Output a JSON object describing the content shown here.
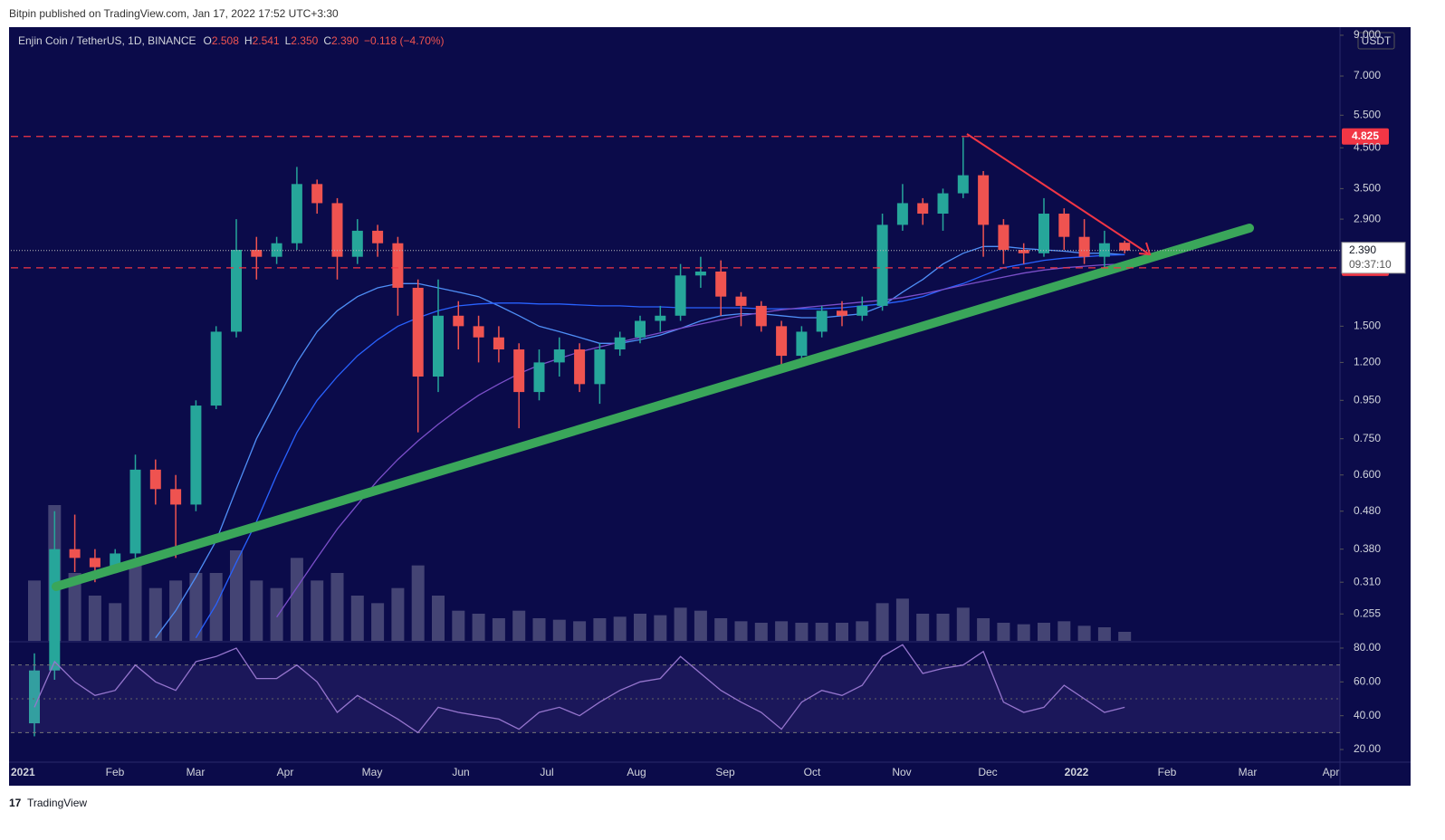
{
  "header": {
    "published": "Bitpin published on TradingView.com, Jan 17, 2022 17:52 UTC+3:30",
    "logo": "TradingView"
  },
  "chart_data": {
    "type": "candlestick",
    "symbol": "Enjin Coin / TetherUS, 1D, BINANCE",
    "ohlc_legend": [
      {
        "key": "O",
        "value": "2.508"
      },
      {
        "key": "H",
        "value": "2.541"
      },
      {
        "key": "L",
        "value": "2.350"
      },
      {
        "key": "C",
        "value": "2.390"
      }
    ],
    "change": "−0.118 (−4.70%)",
    "currency": "USDT",
    "log_scale": true,
    "up_color": "#26a69a",
    "down_color": "#ef5350",
    "ylim": [
      0.216,
      9.46
    ],
    "yticks": [
      0.255,
      {
        "value": 0.31,
        "label": "0.310"
      },
      {
        "value": 0.38,
        "label": "0.380"
      },
      {
        "value": 0.48,
        "label": "0.480"
      },
      {
        "value": 0.6,
        "label": "0.600"
      },
      {
        "value": 0.75,
        "label": "0.750"
      },
      {
        "value": 0.95,
        "label": "0.950"
      },
      {
        "value": 1.2,
        "label": "1.200"
      },
      {
        "value": 1.5,
        "label": "1.500"
      },
      {
        "value": 2.9,
        "label": "2.900"
      },
      {
        "value": 3.5,
        "label": "3.500"
      },
      {
        "value": 4.5,
        "label": "4.500"
      },
      {
        "value": 5.5,
        "label": "5.500"
      },
      {
        "value": 7,
        "label": "7.000"
      },
      {
        "value": 9,
        "label": "9.000"
      }
    ],
    "x_labels": [
      "2021",
      "Feb",
      "Mar",
      "Apr",
      "May",
      "Jun",
      "Jul",
      "Aug",
      "Sep",
      "Oct",
      "Nov",
      "Dec",
      "2022",
      "Feb",
      "Mar",
      "Apr"
    ],
    "open": [
      0.13,
      0.18,
      0.38,
      0.36,
      0.34,
      0.37,
      0.62,
      0.55,
      0.5,
      0.92,
      1.45,
      2.4,
      2.3,
      2.5,
      3.6,
      3.2,
      2.3,
      2.7,
      2.5,
      1.9,
      1.1,
      1.6,
      1.5,
      1.4,
      1.3,
      1.0,
      1.2,
      1.3,
      1.05,
      1.3,
      1.4,
      1.55,
      1.6,
      2.05,
      2.1,
      1.8,
      1.7,
      1.5,
      1.25,
      1.45,
      1.65,
      1.6,
      1.7,
      2.8,
      3.2,
      3.0,
      3.4,
      3.8,
      2.8,
      2.4,
      2.35,
      3.0,
      2.6,
      2.3,
      2.508
    ],
    "high": [
      0.2,
      0.48,
      0.47,
      0.38,
      0.38,
      0.68,
      0.66,
      0.6,
      0.95,
      1.5,
      2.9,
      2.6,
      2.6,
      4.0,
      3.7,
      3.3,
      2.9,
      2.8,
      2.6,
      2.0,
      2.0,
      1.75,
      1.6,
      1.5,
      1.35,
      1.3,
      1.4,
      1.35,
      1.35,
      1.45,
      1.6,
      1.7,
      2.2,
      2.3,
      2.25,
      1.85,
      1.75,
      1.55,
      1.5,
      1.7,
      1.75,
      1.8,
      3.0,
      3.6,
      3.3,
      3.5,
      4.8,
      3.9,
      2.9,
      2.5,
      3.3,
      3.1,
      2.9,
      2.7,
      2.541
    ],
    "low": [
      0.12,
      0.17,
      0.33,
      0.31,
      0.33,
      0.36,
      0.5,
      0.36,
      0.48,
      0.9,
      1.4,
      2.0,
      2.2,
      2.4,
      3.0,
      2.0,
      2.2,
      2.3,
      1.6,
      0.78,
      1.0,
      1.3,
      1.2,
      1.2,
      0.8,
      0.95,
      1.1,
      1.0,
      0.93,
      1.25,
      1.35,
      1.45,
      1.55,
      1.9,
      1.6,
      1.5,
      1.45,
      1.18,
      1.2,
      1.4,
      1.5,
      1.55,
      1.65,
      2.7,
      2.8,
      2.7,
      3.3,
      2.3,
      2.2,
      2.2,
      2.3,
      2.4,
      2.2,
      2.15,
      2.35
    ],
    "close": [
      0.18,
      0.38,
      0.36,
      0.34,
      0.37,
      0.62,
      0.55,
      0.5,
      0.92,
      1.45,
      2.4,
      2.3,
      2.5,
      3.6,
      3.2,
      2.3,
      2.7,
      2.5,
      1.9,
      1.1,
      1.6,
      1.5,
      1.4,
      1.3,
      1.0,
      1.2,
      1.3,
      1.05,
      1.3,
      1.4,
      1.55,
      1.6,
      2.05,
      2.1,
      1.8,
      1.7,
      1.5,
      1.25,
      1.45,
      1.65,
      1.6,
      1.7,
      2.8,
      3.2,
      3.0,
      3.4,
      3.8,
      2.8,
      2.4,
      2.35,
      3.0,
      2.6,
      2.3,
      2.5,
      2.39
    ],
    "levels": [
      {
        "value": 4.825,
        "color": "#f23645"
      },
      {
        "value": 2.149,
        "color": "#f23645"
      }
    ],
    "last_price": {
      "value": 2.39,
      "label": "2.390",
      "countdown": "09:37:10"
    },
    "moving_averages": [
      {
        "color": "#4f8ff7",
        "values": [
          null,
          null,
          null,
          null,
          null,
          null,
          0.22,
          0.26,
          0.32,
          0.4,
          0.55,
          0.75,
          0.95,
          1.2,
          1.45,
          1.65,
          1.8,
          1.9,
          1.95,
          1.95,
          1.9,
          1.85,
          1.8,
          1.7,
          1.6,
          1.5,
          1.45,
          1.4,
          1.35,
          1.35,
          1.38,
          1.42,
          1.48,
          1.55,
          1.6,
          1.62,
          1.62,
          1.6,
          1.58,
          1.58,
          1.6,
          1.62,
          1.7,
          1.85,
          2.0,
          2.2,
          2.35,
          2.45,
          2.45,
          2.42,
          2.4,
          2.38,
          2.35,
          2.35,
          2.33
        ]
      },
      {
        "color": "#2962ff",
        "values": [
          null,
          null,
          null,
          null,
          null,
          null,
          null,
          null,
          0.22,
          0.27,
          0.35,
          0.45,
          0.6,
          0.78,
          0.95,
          1.1,
          1.25,
          1.38,
          1.5,
          1.58,
          1.65,
          1.7,
          1.72,
          1.73,
          1.73,
          1.72,
          1.72,
          1.71,
          1.7,
          1.7,
          1.69,
          1.69,
          1.68,
          1.68,
          1.68,
          1.68,
          1.67,
          1.67,
          1.67,
          1.67,
          1.68,
          1.7,
          1.72,
          1.75,
          1.8,
          1.88,
          1.95,
          2.05,
          2.15,
          2.2,
          2.25,
          2.28,
          2.3,
          2.32,
          2.33
        ]
      },
      {
        "color": "#7b4fc9",
        "values": [
          null,
          null,
          null,
          null,
          null,
          null,
          null,
          null,
          null,
          null,
          null,
          null,
          0.25,
          0.3,
          0.36,
          0.43,
          0.5,
          0.58,
          0.66,
          0.74,
          0.82,
          0.9,
          0.98,
          1.05,
          1.12,
          1.18,
          1.23,
          1.28,
          1.32,
          1.36,
          1.4,
          1.44,
          1.48,
          1.52,
          1.56,
          1.6,
          1.63,
          1.66,
          1.68,
          1.7,
          1.72,
          1.74,
          1.76,
          1.79,
          1.83,
          1.88,
          1.93,
          1.98,
          2.03,
          2.08,
          2.12,
          2.15,
          2.17,
          2.19,
          2.2
        ]
      }
    ],
    "volume": {
      "color": "#8a8aa8",
      "values": [
        40,
        90,
        45,
        30,
        25,
        50,
        35,
        40,
        45,
        45,
        60,
        40,
        35,
        55,
        40,
        45,
        30,
        25,
        35,
        50,
        30,
        20,
        18,
        15,
        20,
        15,
        14,
        13,
        15,
        16,
        18,
        17,
        22,
        20,
        15,
        13,
        12,
        13,
        12,
        12,
        12,
        13,
        25,
        28,
        18,
        18,
        22,
        15,
        12,
        11,
        12,
        13,
        10,
        9,
        6
      ]
    },
    "rsi": {
      "color": "#9575cd",
      "ylim": [
        13.6,
        83.2
      ],
      "bands": [
        30,
        70
      ],
      "midline": 50,
      "yticks": [
        {
          "value": 20,
          "label": "20.00"
        },
        {
          "value": 40,
          "label": "40.00"
        },
        {
          "value": 60,
          "label": "60.00"
        },
        {
          "value": 80,
          "label": "80.00"
        }
      ],
      "values": [
        45,
        72,
        60,
        52,
        55,
        70,
        60,
        55,
        72,
        75,
        80,
        62,
        62,
        70,
        60,
        42,
        52,
        45,
        38,
        30,
        45,
        42,
        40,
        38,
        32,
        42,
        45,
        40,
        48,
        55,
        60,
        62,
        75,
        65,
        55,
        48,
        42,
        32,
        48,
        55,
        52,
        58,
        75,
        82,
        65,
        68,
        70,
        78,
        48,
        42,
        45,
        58,
        50,
        42,
        45
      ]
    }
  }
}
